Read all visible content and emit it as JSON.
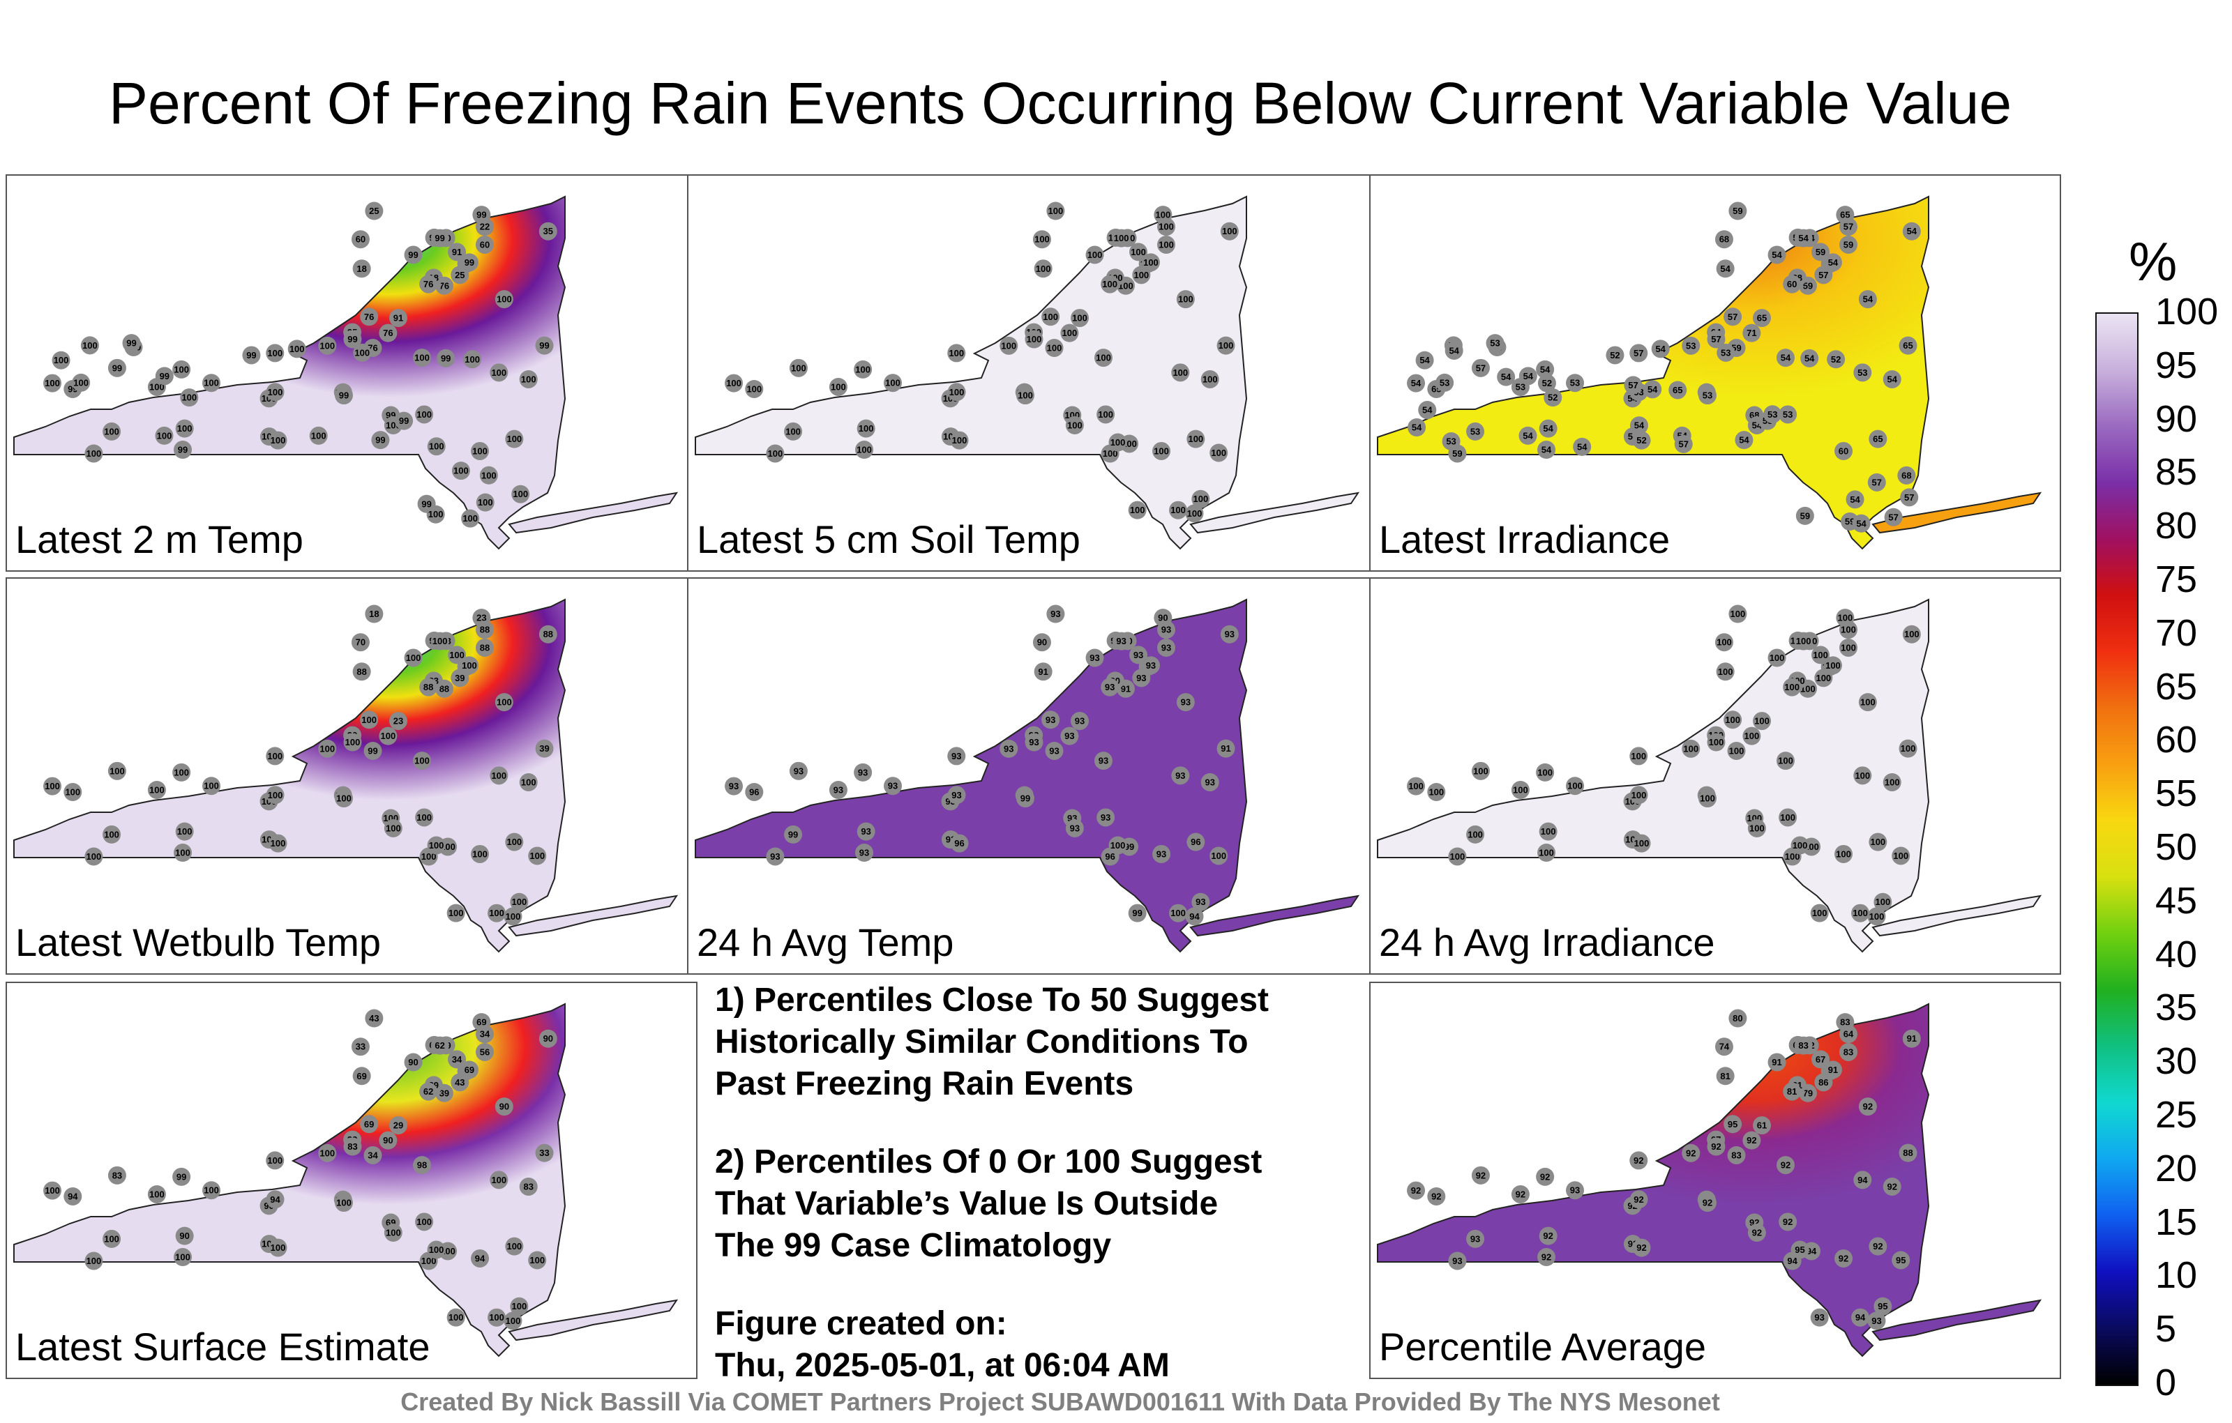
{
  "title": "Percent Of Freezing Rain Events Occurring Below Current Variable Value",
  "panels": [
    {
      "label": "Latest 2 m Temp",
      "fill": "#e6dcf0",
      "nys_value": "100",
      "north_hot": true,
      "station_values": [
        "76",
        "60",
        "18",
        "35",
        "22",
        "91",
        "99",
        "60",
        "22",
        "25",
        "25",
        "99",
        "18",
        "35",
        "76",
        "60",
        "76",
        "99",
        "91",
        "76",
        "99",
        "99",
        "76",
        "99",
        "99",
        "100",
        "99",
        "100",
        "99",
        "99",
        "100",
        "100",
        "100",
        "100",
        "100",
        "100",
        "100",
        "100",
        "100",
        "100",
        "100",
        "100",
        "100",
        "100",
        "99",
        "100",
        "100",
        "100",
        "100",
        "99",
        "100",
        "100",
        "100",
        "99",
        "99",
        "100",
        "100",
        "100",
        "100",
        "100",
        "100",
        "100",
        "100",
        "99",
        "99",
        "99",
        "100",
        "99",
        "100",
        "99",
        "100",
        "100",
        "100",
        "100",
        "100",
        "100"
      ]
    },
    {
      "label": "Latest 5 cm Soil Temp",
      "fill": "#f0edf5",
      "nys_value": "100",
      "north_hot": false,
      "station_values": [
        "100",
        "100",
        "100",
        "100",
        "100",
        "100",
        "100",
        "100",
        "100",
        "100",
        "100",
        "100",
        "100",
        "100",
        "100",
        "100",
        "100",
        "100",
        "100",
        "100",
        "100",
        "100",
        "100",
        "100",
        "100",
        "100",
        "100",
        "100",
        "100",
        "100",
        "100",
        "100",
        "100",
        "100",
        "100",
        "100",
        "100",
        "100",
        "100",
        "100",
        "100",
        "100",
        "100",
        "100",
        "100",
        "100",
        "100",
        "100",
        "100",
        "100",
        "100",
        "100",
        "100",
        "100",
        "100",
        "100",
        "100",
        "100",
        "100",
        "100"
      ]
    },
    {
      "label": "Latest Irradiance",
      "fill": "#f2ec12",
      "nys_value": "54",
      "north_hot": false,
      "irradiance": true,
      "station_values": [
        "59",
        "68",
        "68",
        "64",
        "57",
        "65",
        "65",
        "54",
        "57",
        "57",
        "59",
        "65",
        "54",
        "54",
        "60",
        "59",
        "59",
        "54",
        "59",
        "57",
        "54",
        "57",
        "71",
        "54",
        "54",
        "54",
        "57",
        "57",
        "65",
        "68",
        "54",
        "54",
        "54",
        "53",
        "54",
        "54",
        "54",
        "60",
        "65",
        "53",
        "53",
        "53",
        "53",
        "54",
        "54",
        "54",
        "59",
        "59",
        "52",
        "53",
        "53",
        "53",
        "54",
        "53",
        "54",
        "54",
        "54",
        "53",
        "54",
        "52",
        "54",
        "52",
        "53",
        "54",
        "54",
        "53",
        "53",
        "52",
        "54",
        "54",
        "54",
        "54",
        "53",
        "52",
        "53",
        "54",
        "54",
        "54",
        "57",
        "57",
        "65",
        "59",
        "57",
        "57",
        "59",
        "68",
        "54",
        "57",
        "54"
      ]
    },
    {
      "label": "Latest Wetbulb Temp",
      "fill": "#e6dcf0",
      "nys_value": "100",
      "north_hot": true,
      "station_values": [
        "88",
        "70",
        "23",
        "39",
        "88",
        "23",
        "23",
        "88",
        "88",
        "39",
        "18",
        "39",
        "88",
        "88",
        "88",
        "88",
        "99",
        "99",
        "100",
        "100",
        "100",
        "100",
        "100",
        "100",
        "100",
        "100",
        "100",
        "100",
        "100",
        "100",
        "100",
        "100",
        "100",
        "100",
        "100",
        "100",
        "100",
        "100",
        "100",
        "100",
        "100",
        "100",
        "100",
        "100",
        "100",
        "100",
        "100",
        "100",
        "100",
        "100",
        "100",
        "100",
        "100",
        "100",
        "100",
        "100",
        "100",
        "100",
        "100",
        "100"
      ]
    },
    {
      "label": "24 h Avg Temp",
      "fill": "#7a3fa8",
      "nys_value": "93",
      "north_hot": false,
      "station_values": [
        "91",
        "90",
        "90",
        "93",
        "91",
        "93",
        "90",
        "90",
        "93",
        "93",
        "93",
        "91",
        "91",
        "93",
        "93",
        "93",
        "93",
        "93",
        "93",
        "93",
        "93",
        "93",
        "93",
        "93",
        "93",
        "93",
        "93",
        "93",
        "96",
        "93",
        "93",
        "93",
        "93",
        "93",
        "93",
        "93",
        "93",
        "93",
        "96",
        "93",
        "93",
        "93",
        "93",
        "93",
        "93",
        "93",
        "93",
        "93",
        "96",
        "99",
        "99",
        "93",
        "96",
        "93",
        "94",
        "99",
        "99",
        "100",
        "100",
        "100"
      ]
    },
    {
      "label": "24 h Avg Irradiance",
      "fill": "#f0edf5",
      "nys_value": "100",
      "north_hot": false,
      "station_values": [
        "100",
        "100",
        "100",
        "100",
        "100",
        "100",
        "100",
        "100",
        "100",
        "100",
        "100",
        "100",
        "100",
        "100",
        "100",
        "100",
        "100",
        "100",
        "100",
        "100",
        "100",
        "100",
        "100",
        "100",
        "100",
        "100",
        "100",
        "100",
        "100",
        "100",
        "100",
        "100",
        "100",
        "100",
        "100",
        "100",
        "100",
        "100",
        "100",
        "100",
        "100",
        "100",
        "100",
        "100",
        "100",
        "100",
        "100",
        "100",
        "100",
        "100",
        "100",
        "100",
        "100",
        "100",
        "100",
        "100",
        "100",
        "100",
        "100",
        "100"
      ]
    },
    {
      "label": "Latest Surface Estimate",
      "fill": "#e6dcf0",
      "nys_value": "100",
      "north_hot": true,
      "green_north": true,
      "station_values": [
        "39",
        "33",
        "29",
        "33",
        "56",
        "29",
        "69",
        "39",
        "34",
        "43",
        "43",
        "33",
        "69",
        "90",
        "62",
        "56",
        "34",
        "62",
        "34",
        "69",
        "90",
        "83",
        "90",
        "62",
        "69",
        "90",
        "83",
        "100",
        "94",
        "69",
        "83",
        "90",
        "100",
        "94",
        "99",
        "98",
        "90",
        "94",
        "100",
        "100",
        "100",
        "100",
        "100",
        "100",
        "100",
        "100",
        "100",
        "100",
        "100",
        "100",
        "100",
        "100",
        "100",
        "100",
        "100",
        "100",
        "100",
        "100",
        "100",
        "100"
      ]
    },
    {
      "label": "Percentile Average",
      "fill": "#7a3fa8",
      "nys_value": "92",
      "north_hot": true,
      "avg": true,
      "station_values": [
        "79",
        "74",
        "61",
        "67",
        "69",
        "61",
        "83",
        "62",
        "64",
        "86",
        "80",
        "88",
        "81",
        "91",
        "81",
        "83",
        "83",
        "66",
        "67",
        "95",
        "91",
        "92",
        "92",
        "83",
        "91",
        "92",
        "92",
        "92",
        "92",
        "92",
        "92",
        "92",
        "92",
        "92",
        "92",
        "92",
        "92",
        "92",
        "92",
        "92",
        "92",
        "93",
        "92",
        "92",
        "92",
        "92",
        "92",
        "93",
        "92",
        "92",
        "93",
        "94",
        "94",
        "95",
        "93",
        "93",
        "94",
        "95",
        "94",
        "95"
      ]
    }
  ],
  "notes": [
    "1) Percentiles Close To 50 Suggest\nHistorically Similar Conditions To\nPast Freezing Rain Events",
    "2) Percentiles Of 0 Or 100 Suggest\nThat Variable’s Value Is Outside\nThe 99 Case Climatology",
    "Figure created on:\nThu, 2025-05-01, at 06:04 AM"
  ],
  "colorbar": {
    "unit": "%",
    "ticks": [
      "100",
      "95",
      "90",
      "85",
      "80",
      "75",
      "70",
      "65",
      "60",
      "55",
      "50",
      "45",
      "40",
      "35",
      "30",
      "25",
      "20",
      "15",
      "10",
      "5",
      "0"
    ],
    "range": [
      0,
      100
    ]
  },
  "footer": "Created By Nick Bassill Via COMET Partners Project SUBAWD001611 With Data Provided By The NYS Mesonet"
}
